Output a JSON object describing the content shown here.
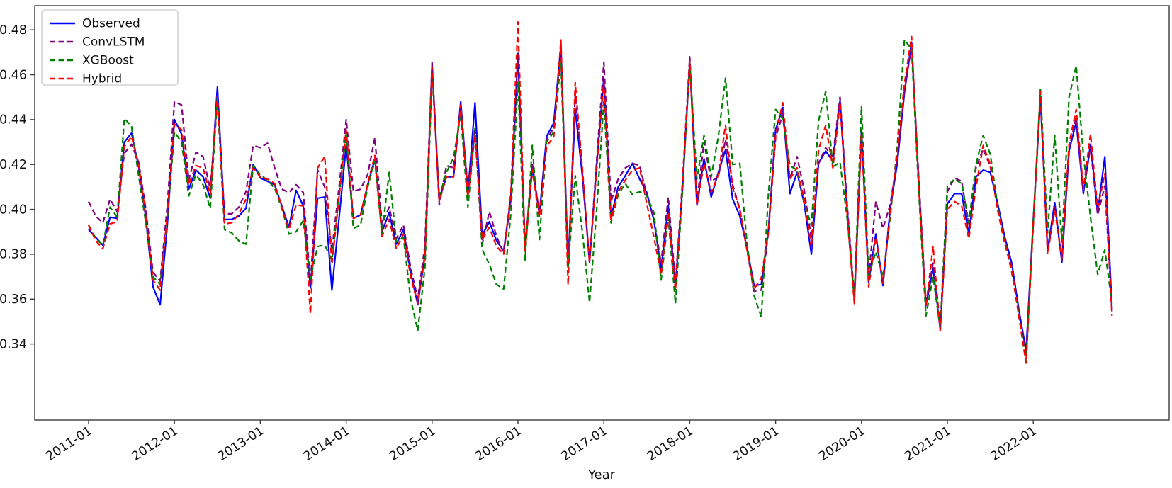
{
  "figure": {
    "xlabel": "Year",
    "ylabel": "",
    "title": ""
  },
  "legend": {
    "position": "upper-left",
    "entries": [
      {
        "label": "Observed",
        "color": "#0000ff",
        "style": "solid"
      },
      {
        "label": "ConvLSTM",
        "color": "#800080",
        "style": "dashed"
      },
      {
        "label": "XGBoost",
        "color": "#008000",
        "style": "dashed"
      },
      {
        "label": "Hybrid",
        "color": "#ff0000",
        "style": "dashed"
      }
    ]
  },
  "chart_data": {
    "type": "line",
    "title": "",
    "xlabel": "Year",
    "ylabel": "",
    "grid": false,
    "legend_position": "upper left",
    "x_start": "2011-01",
    "x_freq": "monthly",
    "n_points": 144,
    "ylim": [
      0.3061,
      0.4908
    ],
    "y_tick_labels": [
      "0.34",
      "0.36",
      "0.38",
      "0.40",
      "0.42",
      "0.44",
      "0.46",
      "0.48"
    ],
    "y_tick_values": [
      0.34,
      0.36,
      0.38,
      0.4,
      0.42,
      0.44,
      0.46,
      0.48
    ],
    "x_tick_labels": [
      "2011-01",
      "2012-01",
      "2013-01",
      "2014-01",
      "2015-01",
      "2016-01",
      "2017-01",
      "2018-01",
      "2019-01",
      "2020-01",
      "2021-01",
      "2022-01"
    ],
    "x_tick_month_index": [
      0,
      12,
      24,
      36,
      48,
      60,
      72,
      84,
      96,
      108,
      120,
      132
    ],
    "series": [
      {
        "name": "Observed",
        "color": "#0000ff",
        "dashed": false,
        "values": [
          0.391,
          0.3875,
          0.384,
          0.3965,
          0.396,
          0.43,
          0.434,
          0.419,
          0.396,
          0.3655,
          0.3575,
          0.393,
          0.44,
          0.4335,
          0.409,
          0.4175,
          0.4145,
          0.405,
          0.4545,
          0.3955,
          0.3955,
          0.397,
          0.4005,
          0.42,
          0.414,
          0.4125,
          0.411,
          0.4015,
          0.392,
          0.4085,
          0.4015,
          0.365,
          0.405,
          0.4055,
          0.364,
          0.396,
          0.4285,
          0.396,
          0.3975,
          0.411,
          0.4225,
          0.39,
          0.3985,
          0.3845,
          0.391,
          0.372,
          0.3575,
          0.38,
          0.4645,
          0.4045,
          0.4145,
          0.4145,
          0.448,
          0.407,
          0.4475,
          0.3885,
          0.3945,
          0.386,
          0.3815,
          0.405,
          0.4695,
          0.383,
          0.4185,
          0.398,
          0.4325,
          0.4385,
          0.473,
          0.3755,
          0.4445,
          0.415,
          0.3765,
          0.42,
          0.4585,
          0.3965,
          0.41,
          0.415,
          0.4205,
          0.4135,
          0.4075,
          0.395,
          0.3735,
          0.4015,
          0.3655,
          0.41,
          0.4655,
          0.402,
          0.4225,
          0.4055,
          0.4165,
          0.4265,
          0.4045,
          0.397,
          0.383,
          0.366,
          0.3665,
          0.391,
          0.4355,
          0.4455,
          0.407,
          0.4165,
          0.4025,
          0.38,
          0.4205,
          0.426,
          0.4215,
          0.4485,
          0.4,
          0.3595,
          0.4355,
          0.3675,
          0.389,
          0.366,
          0.4,
          0.4205,
          0.452,
          0.4745,
          0.412,
          0.357,
          0.374,
          0.3465,
          0.4025,
          0.407,
          0.407,
          0.389,
          0.4145,
          0.4175,
          0.4165,
          0.403,
          0.388,
          0.376,
          0.355,
          0.337,
          0.395,
          0.4495,
          0.382,
          0.403,
          0.3765,
          0.426,
          0.439,
          0.407,
          0.429,
          0.3985,
          0.4235,
          0.3555
        ]
      },
      {
        "name": "ConvLSTM",
        "color": "#800080",
        "dashed": true,
        "values": [
          0.4035,
          0.397,
          0.394,
          0.4045,
          0.399,
          0.425,
          0.429,
          0.421,
          0.4,
          0.372,
          0.368,
          0.4015,
          0.448,
          0.4465,
          0.413,
          0.4255,
          0.4235,
          0.409,
          0.448,
          0.398,
          0.398,
          0.401,
          0.408,
          0.4285,
          0.4275,
          0.4295,
          0.4185,
          0.409,
          0.4075,
          0.411,
          0.4075,
          0.367,
          0.4175,
          0.41,
          0.3815,
          0.41,
          0.44,
          0.408,
          0.409,
          0.4155,
          0.432,
          0.3935,
          0.401,
          0.387,
          0.393,
          0.374,
          0.36,
          0.384,
          0.4655,
          0.402,
          0.4195,
          0.4185,
          0.4445,
          0.41,
          0.4365,
          0.3845,
          0.399,
          0.388,
          0.3805,
          0.404,
          0.469,
          0.3825,
          0.4205,
          0.3975,
          0.431,
          0.4365,
          0.4715,
          0.3735,
          0.4515,
          0.417,
          0.3765,
          0.422,
          0.4655,
          0.4035,
          0.4135,
          0.4185,
          0.4205,
          0.4195,
          0.4065,
          0.3955,
          0.376,
          0.4055,
          0.367,
          0.413,
          0.468,
          0.4035,
          0.43,
          0.4125,
          0.4145,
          0.431,
          0.411,
          0.4,
          0.382,
          0.3635,
          0.364,
          0.39,
          0.432,
          0.4425,
          0.4135,
          0.4235,
          0.4085,
          0.387,
          0.4205,
          0.4275,
          0.4235,
          0.45,
          0.402,
          0.361,
          0.433,
          0.37,
          0.4035,
          0.3915,
          0.402,
          0.422,
          0.4525,
          0.473,
          0.414,
          0.358,
          0.376,
          0.3475,
          0.408,
          0.414,
          0.4125,
          0.3925,
          0.4185,
          0.427,
          0.419,
          0.401,
          0.387,
          0.3745,
          0.354,
          0.3355,
          0.394,
          0.4505,
          0.381,
          0.401,
          0.3775,
          0.427,
          0.441,
          0.408,
          0.4275,
          0.3975,
          0.4105,
          0.3545
        ]
      },
      {
        "name": "XGBoost",
        "color": "#008000",
        "dashed": true,
        "values": [
          0.393,
          0.387,
          0.384,
          0.401,
          0.3965,
          0.4405,
          0.437,
          0.415,
          0.394,
          0.37,
          0.3665,
          0.3955,
          0.4345,
          0.43,
          0.406,
          0.4155,
          0.411,
          0.4005,
          0.45,
          0.391,
          0.3895,
          0.386,
          0.3845,
          0.4195,
          0.4155,
          0.413,
          0.4095,
          0.4005,
          0.389,
          0.39,
          0.395,
          0.369,
          0.3835,
          0.384,
          0.3775,
          0.4055,
          0.434,
          0.3915,
          0.393,
          0.41,
          0.4215,
          0.389,
          0.4165,
          0.3855,
          0.3875,
          0.36,
          0.346,
          0.374,
          0.4605,
          0.4055,
          0.4165,
          0.423,
          0.4425,
          0.401,
          0.436,
          0.382,
          0.3755,
          0.3665,
          0.3645,
          0.398,
          0.4565,
          0.3775,
          0.4285,
          0.3865,
          0.43,
          0.4345,
          0.466,
          0.374,
          0.415,
          0.39,
          0.3585,
          0.4,
          0.448,
          0.394,
          0.4065,
          0.4115,
          0.4065,
          0.408,
          0.406,
          0.3985,
          0.3685,
          0.3965,
          0.358,
          0.409,
          0.4655,
          0.4135,
          0.433,
          0.4145,
          0.4325,
          0.4585,
          0.42,
          0.4205,
          0.385,
          0.3615,
          0.352,
          0.407,
          0.4445,
          0.4405,
          0.4195,
          0.4175,
          0.4025,
          0.393,
          0.4395,
          0.4525,
          0.419,
          0.421,
          0.396,
          0.3605,
          0.446,
          0.3705,
          0.381,
          0.37,
          0.396,
          0.428,
          0.4755,
          0.4715,
          0.408,
          0.3525,
          0.37,
          0.347,
          0.4105,
          0.4135,
          0.4115,
          0.394,
          0.42,
          0.433,
          0.4245,
          0.402,
          0.386,
          0.372,
          0.353,
          0.332,
          0.394,
          0.4535,
          0.3895,
          0.433,
          0.385,
          0.45,
          0.464,
          0.4245,
          0.3965,
          0.371,
          0.382,
          0.358
        ]
      },
      {
        "name": "Hybrid",
        "color": "#ff0000",
        "dashed": true,
        "values": [
          0.393,
          0.386,
          0.3825,
          0.3935,
          0.3945,
          0.428,
          0.4325,
          0.42,
          0.397,
          0.3685,
          0.364,
          0.3975,
          0.438,
          0.4355,
          0.411,
          0.4195,
          0.4185,
          0.4065,
          0.4505,
          0.3935,
          0.394,
          0.398,
          0.4045,
          0.4185,
          0.4145,
          0.4135,
          0.4115,
          0.401,
          0.391,
          0.402,
          0.4015,
          0.3535,
          0.4185,
          0.4235,
          0.3755,
          0.4055,
          0.4355,
          0.396,
          0.3975,
          0.4115,
          0.424,
          0.388,
          0.3955,
          0.3825,
          0.389,
          0.37,
          0.358,
          0.379,
          0.4635,
          0.4035,
          0.4145,
          0.4145,
          0.4465,
          0.4055,
          0.4335,
          0.3865,
          0.392,
          0.3835,
          0.38,
          0.407,
          0.4835,
          0.3815,
          0.4175,
          0.3965,
          0.428,
          0.4325,
          0.4755,
          0.3665,
          0.4565,
          0.418,
          0.3765,
          0.418,
          0.4565,
          0.3955,
          0.408,
          0.413,
          0.4175,
          0.4185,
          0.4025,
          0.3875,
          0.371,
          0.3985,
          0.364,
          0.412,
          0.466,
          0.4015,
          0.4205,
          0.4075,
          0.4155,
          0.4375,
          0.4095,
          0.4,
          0.382,
          0.3645,
          0.3695,
          0.39,
          0.433,
          0.4475,
          0.4135,
          0.4185,
          0.4045,
          0.383,
          0.4265,
          0.4375,
          0.4185,
          0.4475,
          0.398,
          0.358,
          0.434,
          0.3655,
          0.3875,
          0.367,
          0.398,
          0.4255,
          0.456,
          0.477,
          0.41,
          0.3565,
          0.3835,
          0.346,
          0.4,
          0.4035,
          0.4015,
          0.387,
          0.41,
          0.4285,
          0.42,
          0.4,
          0.385,
          0.373,
          0.352,
          0.3315,
          0.393,
          0.4525,
          0.38,
          0.4,
          0.378,
          0.429,
          0.4445,
          0.409,
          0.4335,
          0.4005,
          0.416,
          0.3525
        ]
      }
    ]
  }
}
